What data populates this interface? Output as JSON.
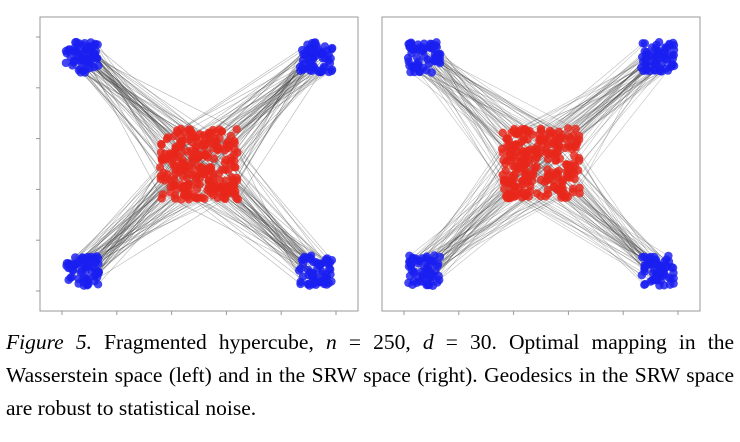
{
  "figure": {
    "panels": [
      {
        "name": "Wasserstein",
        "lines": 250
      },
      {
        "name": "SRW",
        "lines": 250
      }
    ],
    "colors": {
      "source": "#e8271b",
      "target": "#1a1ff0",
      "line": "#3a3a3a",
      "frame": "#999999"
    }
  },
  "chart_data": [
    {
      "type": "scatter",
      "title": "",
      "xlabel": "",
      "ylabel": "",
      "n": 250,
      "clusters": [
        {
          "role": "source",
          "color": "red",
          "center": [
            0.5,
            0.5
          ],
          "spread": 0.14
        },
        {
          "role": "target",
          "color": "blue",
          "centers": [
            [
              0.08,
              0.92
            ],
            [
              0.92,
              0.92
            ],
            [
              0.08,
              0.08
            ],
            [
              0.92,
              0.08
            ]
          ],
          "spread": 0.06
        }
      ],
      "mapping": "optimal mapping in the Wasserstein space (left)"
    },
    {
      "type": "scatter",
      "title": "",
      "xlabel": "",
      "ylabel": "",
      "n": 250,
      "clusters": [
        {
          "role": "source",
          "color": "red",
          "center": [
            0.5,
            0.5
          ],
          "spread": 0.14
        },
        {
          "role": "target",
          "color": "blue",
          "centers": [
            [
              0.08,
              0.92
            ],
            [
              0.92,
              0.92
            ],
            [
              0.08,
              0.08
            ],
            [
              0.92,
              0.08
            ]
          ],
          "spread": 0.06
        }
      ],
      "mapping": "optimal mapping in the SRW space (right)"
    }
  ],
  "caption": {
    "label": "Figure 5.",
    "t1": " Fragmented hypercube, ",
    "var_n": "n",
    "t2": " = 250, ",
    "var_d": "d",
    "t3": " = 30.  Optimal mapping in the Wasserstein space (left) and in the SRW space (right). Geodesics in the SRW space are robust to statistical noise."
  }
}
